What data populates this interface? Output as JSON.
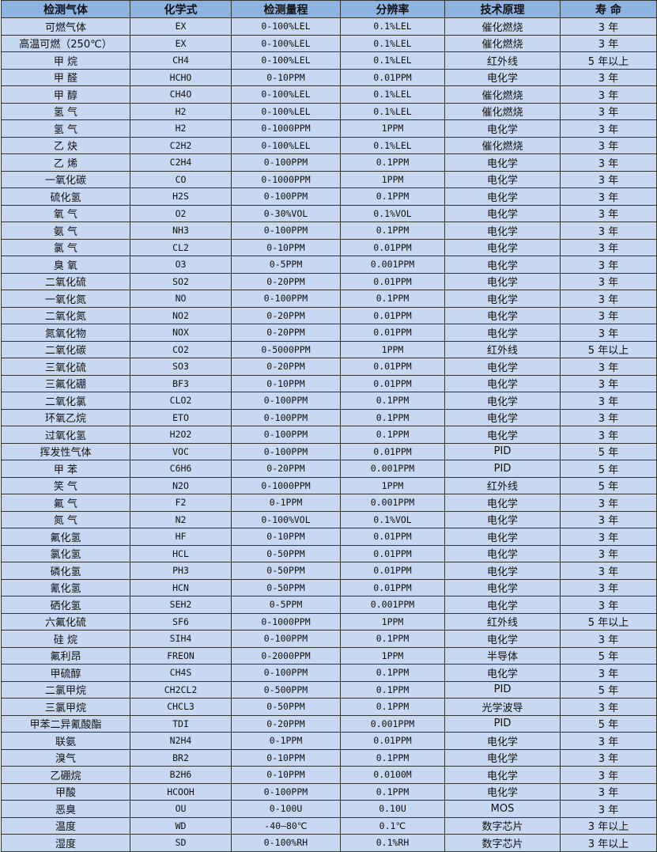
{
  "colors": {
    "header_bg": "#8db3e2",
    "row_bg": "#c6d9f1",
    "border": "#333333"
  },
  "headers": [
    "检测气体",
    "化学式",
    "检测量程",
    "分辨率",
    "技术原理",
    "寿 命"
  ],
  "rows": [
    [
      "可燃气体",
      "EX",
      "0-100%LEL",
      "0.1%LEL",
      "催化燃烧",
      "3 年"
    ],
    [
      "高温可燃（250℃）",
      "EX",
      "0-100%LEL",
      "0.1%LEL",
      "催化燃烧",
      "3 年"
    ],
    [
      "甲 烷",
      "CH4",
      "0-100%LEL",
      "0.1%LEL",
      "红外线",
      "5 年以上"
    ],
    [
      "甲 醛",
      "HCHO",
      "0-10PPM",
      "0.01PPM",
      "电化学",
      "3 年"
    ],
    [
      "甲 醇",
      "CH4O",
      "0-100%LEL",
      "0.1%LEL",
      "催化燃烧",
      "3 年"
    ],
    [
      "氢 气",
      "H2",
      "0-100%LEL",
      "0.1%LEL",
      "催化燃烧",
      "3 年"
    ],
    [
      "氢 气",
      "H2",
      "0-1000PPM",
      "1PPM",
      "电化学",
      "3 年"
    ],
    [
      "乙 炔",
      "C2H2",
      "0-100%LEL",
      "0.1%LEL",
      "催化燃烧",
      "3 年"
    ],
    [
      "乙 烯",
      "C2H4",
      "0-100PPM",
      "0.1PPM",
      "电化学",
      "3 年"
    ],
    [
      "一氧化碳",
      "CO",
      "0-1000PPM",
      "1PPM",
      "电化学",
      "3 年"
    ],
    [
      "硫化氢",
      "H2S",
      "0-100PPM",
      "0.1PPM",
      "电化学",
      "3 年"
    ],
    [
      "氧 气",
      "O2",
      "0-30%VOL",
      "0.1%VOL",
      "电化学",
      "3 年"
    ],
    [
      "氨 气",
      "NH3",
      "0-100PPM",
      "0.1PPM",
      "电化学",
      "3 年"
    ],
    [
      "氯 气",
      "CL2",
      "0-10PPM",
      "0.01PPM",
      "电化学",
      "3 年"
    ],
    [
      "臭 氧",
      "O3",
      "0-5PPM",
      "0.001PPM",
      "电化学",
      "3 年"
    ],
    [
      "二氧化硫",
      "SO2",
      "0-20PPM",
      "0.01PPM",
      "电化学",
      "3 年"
    ],
    [
      "一氧化氮",
      "NO",
      "0-100PPM",
      "0.1PPM",
      "电化学",
      "3 年"
    ],
    [
      "二氧化氮",
      "NO2",
      "0-20PPM",
      "0.01PPM",
      "电化学",
      "3 年"
    ],
    [
      "氮氧化物",
      "NOX",
      "0-20PPM",
      "0.01PPM",
      "电化学",
      "3 年"
    ],
    [
      "二氧化碳",
      "CO2",
      "0-5000PPM",
      "1PPM",
      "红外线",
      "5 年以上"
    ],
    [
      "三氧化硫",
      "SO3",
      "0-20PPM",
      "0.01PPM",
      "电化学",
      "3 年"
    ],
    [
      "三氟化硼",
      "BF3",
      "0-10PPM",
      "0.01PPM",
      "电化学",
      "3 年"
    ],
    [
      "二氧化氯",
      "CLO2",
      "0-100PPM",
      "0.1PPM",
      "电化学",
      "3 年"
    ],
    [
      "环氧乙烷",
      "ETO",
      "0-100PPM",
      "0.1PPM",
      "电化学",
      "3 年"
    ],
    [
      "过氧化氢",
      "H2O2",
      "0-100PPM",
      "0.1PPM",
      "电化学",
      "3 年"
    ],
    [
      "挥发性气体",
      "VOC",
      "0-100PPM",
      "0.01PPM",
      "PID",
      "5 年"
    ],
    [
      "甲 苯",
      "C6H6",
      "0-20PPM",
      "0.001PPM",
      "PID",
      "5 年"
    ],
    [
      "笑 气",
      "N2O",
      "0-1000PPM",
      "1PPM",
      "红外线",
      "5 年"
    ],
    [
      "氟 气",
      "F2",
      "0-1PPM",
      "0.001PPM",
      "电化学",
      "3 年"
    ],
    [
      "氮 气",
      "N2",
      "0-100%VOL",
      "0.1%VOL",
      "电化学",
      "3 年"
    ],
    [
      "氟化氢",
      "HF",
      "0-10PPM",
      "0.01PPM",
      "电化学",
      "3 年"
    ],
    [
      "氯化氢",
      "HCL",
      "0-50PPM",
      "0.01PPM",
      "电化学",
      "3 年"
    ],
    [
      "磷化氢",
      "PH3",
      "0-50PPM",
      "0.01PPM",
      "电化学",
      "3 年"
    ],
    [
      "氰化氢",
      "HCN",
      "0-50PPM",
      "0.01PPM",
      "电化学",
      "3 年"
    ],
    [
      "硒化氢",
      "SEH2",
      "0-5PPM",
      "0.001PPM",
      "电化学",
      "3 年"
    ],
    [
      "六氟化硫",
      "SF6",
      "0-1000PPM",
      "1PPM",
      "红外线",
      "5 年以上"
    ],
    [
      "硅 烷",
      "SIH4",
      "0-100PPM",
      "0.1PPM",
      "电化学",
      "3 年"
    ],
    [
      "氟利昂",
      "FREON",
      "0-2000PPM",
      "1PPM",
      "半导体",
      "5 年"
    ],
    [
      "甲硫醇",
      "CH4S",
      "0-100PPM",
      "0.1PPM",
      "电化学",
      "3 年"
    ],
    [
      "二氯甲烷",
      "CH2CL2",
      "0-500PPM",
      "0.1PPM",
      "PID",
      "5 年"
    ],
    [
      "三氯甲烷",
      "CHCL3",
      "0-50PPM",
      "0.1PPM",
      "光学波导",
      "3 年"
    ],
    [
      "甲苯二异氰酸酯",
      "TDI",
      "0-20PPM",
      "0.001PPM",
      "PID",
      "5 年"
    ],
    [
      "联氨",
      "N2H4",
      "0-1PPM",
      "0.01PPM",
      "电化学",
      "3 年"
    ],
    [
      "溴气",
      "BR2",
      "0-10PPM",
      "0.1PPM",
      "电化学",
      "3 年"
    ],
    [
      "乙硼烷",
      "B2H6",
      "0-10PPM",
      "0.0100M",
      "电化学",
      "3 年"
    ],
    [
      "甲酸",
      "HCOOH",
      "0-100PPM",
      "0.1PPM",
      "电化学",
      "3 年"
    ],
    [
      "恶臭",
      "OU",
      "0-100U",
      "0.10U",
      "MOS",
      "3 年"
    ],
    [
      "温度",
      "WD",
      "-40—80℃",
      "0.1℃",
      "数字芯片",
      "3 年以上"
    ],
    [
      "湿度",
      "SD",
      "0-100%RH",
      "0.1%RH",
      "数字芯片",
      "3 年以上"
    ]
  ]
}
